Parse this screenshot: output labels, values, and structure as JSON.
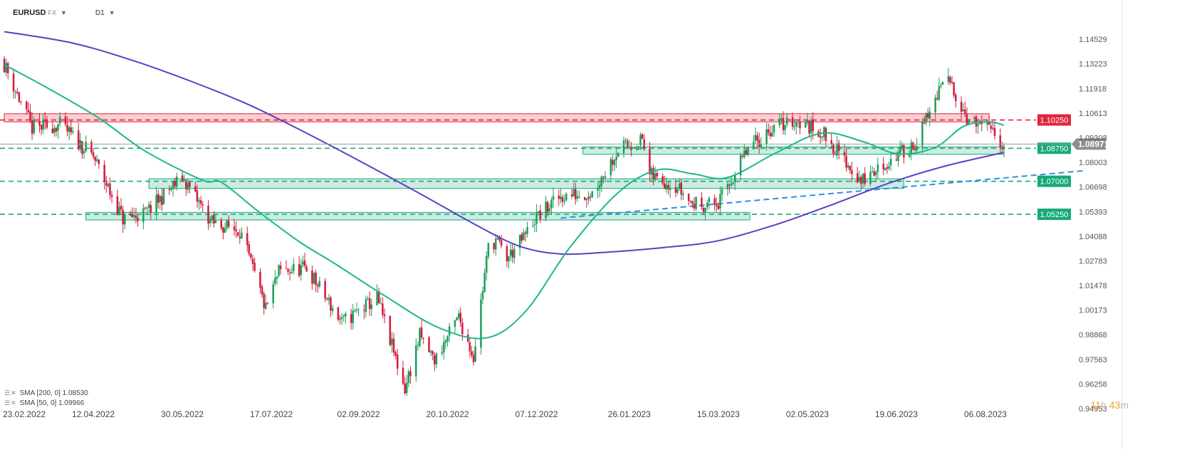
{
  "header": {
    "symbol": "EURUSD",
    "market": "FX",
    "timeframe": "D1"
  },
  "legend": [
    {
      "label": "SMA [200, 0] 1.08530",
      "color": "#5b3fc4"
    },
    {
      "label": "SMA [50, 0] 1.09966",
      "color": "#1cb88a"
    }
  ],
  "timer": {
    "hours": "11",
    "h": "h",
    "minutes": "43",
    "m": "m"
  },
  "colors": {
    "bull": "#1b9e5a",
    "bear": "#d41a3a",
    "sma200": "#5b3fc4",
    "sma50": "#1cb88a",
    "resistance": "#e0263c",
    "support": "#17a979",
    "trend": "#2f8fe6",
    "current": "#9a9a9a"
  },
  "chart_data": {
    "type": "candlestick",
    "instrument": "EURUSD",
    "timeframe": "D1",
    "x_ticks": [
      "23.02.2022",
      "12.04.2022",
      "30.05.2022",
      "17.07.2022",
      "02.09.2022",
      "20.10.2022",
      "07.12.2022",
      "26.01.2023",
      "15.03.2023",
      "02.05.2023",
      "19.06.2023",
      "06.08.2023"
    ],
    "y_ticks": [
      "1.14529",
      "1.13223",
      "1.11918",
      "1.10613",
      "1.09308",
      "1.08003",
      "1.06698",
      "1.05393",
      "1.04088",
      "1.02783",
      "1.01478",
      "1.00173",
      "0.98868",
      "0.97563",
      "0.96258",
      "0.94953"
    ],
    "ylim": [
      0.9465,
      1.1525
    ],
    "current_price": 1.08971,
    "levels": [
      {
        "value": 1.1025,
        "label": "1.10250",
        "kind": "resistance"
      },
      {
        "value": 1.0875,
        "label": "1.08750",
        "kind": "support"
      },
      {
        "value": 1.07,
        "label": "1.07000",
        "kind": "support"
      },
      {
        "value": 1.0525,
        "label": "1.05250",
        "kind": "support"
      }
    ],
    "zones": [
      {
        "from": 1.1015,
        "to": 1.1058,
        "start": "23.02.2022",
        "end": "08.08.2023",
        "kind": "resistance"
      },
      {
        "from": 1.0843,
        "to": 1.0882,
        "start": "01.01.2023",
        "end": "16.08.2023",
        "kind": "support"
      },
      {
        "from": 1.0662,
        "to": 1.0713,
        "start": "12.05.2022",
        "end": "23.06.2023",
        "kind": "support"
      },
      {
        "from": 1.0495,
        "to": 1.0535,
        "start": "08.04.2022",
        "end": "01.04.2023",
        "kind": "support"
      }
    ],
    "trendline": {
      "from": {
        "date": "20.12.2022",
        "price": 1.0505
      },
      "to": {
        "date": "28.09.2023",
        "price": 1.0756
      }
    },
    "sma200_points": [
      [
        "23.02.2022",
        1.1493
      ],
      [
        "01.04.2022",
        1.1432
      ],
      [
        "05.05.2022",
        1.1335
      ],
      [
        "05.06.2022",
        1.1225
      ],
      [
        "05.07.2022",
        1.1105
      ],
      [
        "05.08.2022",
        1.0955
      ],
      [
        "05.09.2022",
        1.0795
      ],
      [
        "05.10.2022",
        1.0635
      ],
      [
        "05.11.2022",
        1.0465
      ],
      [
        "28.11.2022",
        1.0355
      ],
      [
        "20.12.2022",
        1.0315
      ],
      [
        "15.01.2023",
        1.0325
      ],
      [
        "15.02.2023",
        1.035
      ],
      [
        "15.03.2023",
        1.0385
      ],
      [
        "15.04.2023",
        1.047
      ],
      [
        "15.05.2023",
        1.0575
      ],
      [
        "15.06.2023",
        1.069
      ],
      [
        "15.07.2023",
        1.078
      ],
      [
        "16.08.2023",
        1.0853
      ]
    ],
    "sma50_points": [
      [
        "23.02.2022",
        1.1318
      ],
      [
        "20.03.2022",
        1.1185
      ],
      [
        "15.04.2022",
        1.1035
      ],
      [
        "10.05.2022",
        1.086
      ],
      [
        "10.06.2022",
        1.0705
      ],
      [
        "20.06.2022",
        1.0695
      ],
      [
        "10.07.2022",
        1.054
      ],
      [
        "01.08.2022",
        1.038
      ],
      [
        "20.08.2022",
        1.0265
      ],
      [
        "15.09.2022",
        1.01
      ],
      [
        "15.10.2022",
        0.9925
      ],
      [
        "10.11.2022",
        0.987
      ],
      [
        "01.12.2022",
        1.001
      ],
      [
        "25.12.2022",
        1.035
      ],
      [
        "20.01.2023",
        1.064
      ],
      [
        "10.02.2023",
        1.076
      ],
      [
        "01.03.2023",
        1.074
      ],
      [
        "20.03.2023",
        1.072
      ],
      [
        "15.04.2023",
        1.085
      ],
      [
        "10.05.2023",
        1.0955
      ],
      [
        "01.06.2023",
        1.091
      ],
      [
        "20.06.2023",
        1.0845
      ],
      [
        "10.07.2023",
        1.088
      ],
      [
        "25.07.2023",
        1.099
      ],
      [
        "08.08.2023",
        1.1015
      ],
      [
        "16.08.2023",
        1.0997
      ]
    ],
    "closes": [
      [
        "23.02.2022",
        1.132
      ],
      [
        "10.03.2022",
        1.098
      ],
      [
        "25.03.2022",
        1.1
      ],
      [
        "12.04.2022",
        1.083
      ],
      [
        "28.04.2022",
        1.05
      ],
      [
        "10.05.2022",
        1.053
      ],
      [
        "30.05.2022",
        1.072
      ],
      [
        "15.06.2022",
        1.048
      ],
      [
        "30.06.2022",
        1.044
      ],
      [
        "14.07.2022",
        1.002
      ],
      [
        "21.07.2022",
        1.022
      ],
      [
        "05.08.2022",
        1.024
      ],
      [
        "24.08.2022",
        0.995
      ],
      [
        "12.09.2022",
        1.008
      ],
      [
        "27.09.2022",
        0.96
      ],
      [
        "05.10.2022",
        0.988
      ],
      [
        "13.10.2022",
        0.975
      ],
      [
        "26.10.2022",
        0.998
      ],
      [
        "03.11.2022",
        0.977
      ],
      [
        "11.11.2022",
        1.035
      ],
      [
        "15.11.2022",
        1.039
      ],
      [
        "21.11.2022",
        1.029
      ],
      [
        "30.11.2022",
        1.04
      ],
      [
        "06.12.2022",
        1.05
      ],
      [
        "20.12.2022",
        1.062
      ],
      [
        "06.01.2023",
        1.064
      ],
      [
        "20.01.2023",
        1.087
      ],
      [
        "02.02.2023",
        1.092
      ],
      [
        "06.02.2023",
        1.073
      ],
      [
        "20.02.2023",
        1.068
      ],
      [
        "01.03.2023",
        1.058
      ],
      [
        "15.03.2023",
        1.058
      ],
      [
        "31.03.2023",
        1.087
      ],
      [
        "14.04.2023",
        1.099
      ],
      [
        "26.04.2023",
        1.102
      ],
      [
        "10.05.2023",
        1.096
      ],
      [
        "31.05.2023",
        1.07
      ],
      [
        "13.06.2023",
        1.079
      ],
      [
        "30.06.2023",
        1.091
      ],
      [
        "13.07.2023",
        1.12
      ],
      [
        "18.07.2023",
        1.123
      ],
      [
        "28.07.2023",
        1.102
      ],
      [
        "07.08.2023",
        1.098
      ],
      [
        "16.08.2023",
        1.0897
      ]
    ]
  }
}
